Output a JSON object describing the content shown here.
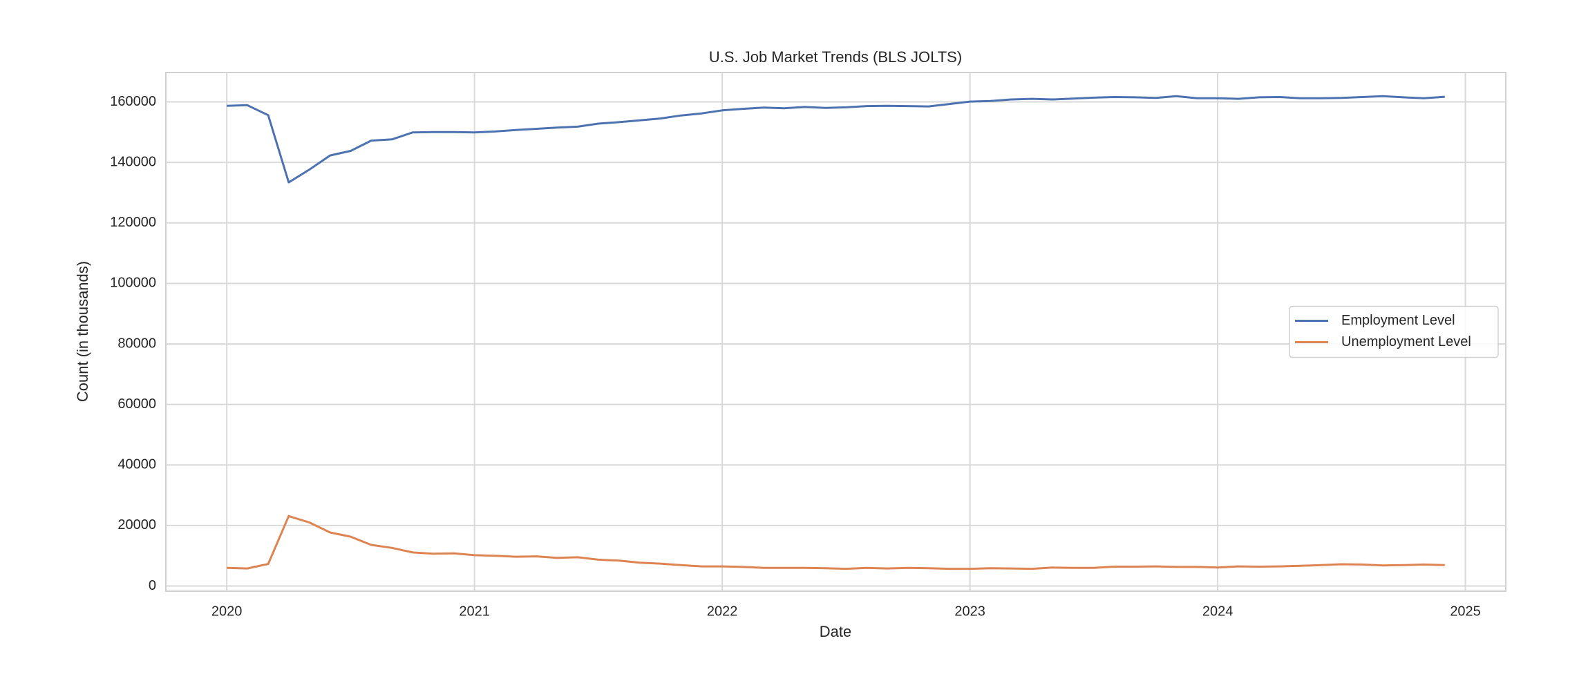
{
  "chart_data": {
    "type": "line",
    "title": "U.S. Job Market Trends (BLS JOLTS)",
    "xlabel": "Date",
    "ylabel": "Count (in thousands)",
    "x": [
      2020,
      2020.083,
      2020.167,
      2020.25,
      2020.333,
      2020.417,
      2020.5,
      2020.583,
      2020.667,
      2020.75,
      2020.833,
      2020.917,
      2021,
      2021.083,
      2021.167,
      2021.25,
      2021.333,
      2021.417,
      2021.5,
      2021.583,
      2021.667,
      2021.75,
      2021.833,
      2021.917,
      2022,
      2022.083,
      2022.167,
      2022.25,
      2022.333,
      2022.417,
      2022.5,
      2022.583,
      2022.667,
      2022.75,
      2022.833,
      2022.917,
      2023,
      2023.083,
      2023.167,
      2023.25,
      2023.333,
      2023.417,
      2023.5,
      2023.583,
      2023.667,
      2023.75,
      2023.833,
      2023.917,
      2024,
      2024.083,
      2024.167,
      2024.25,
      2024.333,
      2024.417,
      2024.5,
      2024.583,
      2024.667,
      2024.75,
      2024.833,
      2024.917
    ],
    "series": [
      {
        "name": "Employment Level",
        "color": "#4c72b0",
        "values": [
          158700,
          158900,
          155600,
          133400,
          137600,
          142300,
          143800,
          147200,
          147600,
          149900,
          150000,
          150000,
          149900,
          150200,
          150700,
          151100,
          151500,
          151800,
          152800,
          153300,
          153900,
          154500,
          155500,
          156200,
          157200,
          157700,
          158100,
          157900,
          158300,
          158000,
          158200,
          158600,
          158700,
          158600,
          158500,
          159300,
          160100,
          160300,
          160800,
          161000,
          160800,
          161100,
          161400,
          161600,
          161500,
          161300,
          161900,
          161200,
          161200,
          161000,
          161500,
          161600,
          161200,
          161200,
          161300,
          161600,
          161900,
          161500,
          161200,
          161700
        ]
      },
      {
        "name": "Unemployment Level",
        "color": "#dd8452",
        "values": [
          6000,
          5800,
          7300,
          23100,
          21000,
          17700,
          16300,
          13600,
          12600,
          11100,
          10700,
          10800,
          10200,
          10000,
          9700,
          9800,
          9300,
          9500,
          8700,
          8400,
          7700,
          7400,
          6900,
          6500,
          6500,
          6300,
          6000,
          6000,
          6000,
          5900,
          5700,
          6000,
          5800,
          6000,
          5900,
          5700,
          5700,
          5900,
          5800,
          5700,
          6100,
          6000,
          6000,
          6400,
          6400,
          6500,
          6300,
          6300,
          6100,
          6500,
          6400,
          6500,
          6700,
          6900,
          7200,
          7100,
          6800,
          6900,
          7100,
          6900
        ]
      }
    ],
    "xlim": [
      2019.754,
      2025.163
    ],
    "xticks": [
      2020,
      2021,
      2022,
      2023,
      2024,
      2025
    ],
    "ylim": [
      -1700,
      169700
    ],
    "yticks": [
      0,
      20000,
      40000,
      60000,
      80000,
      100000,
      120000,
      140000,
      160000
    ],
    "grid": true,
    "legend": "center right"
  }
}
